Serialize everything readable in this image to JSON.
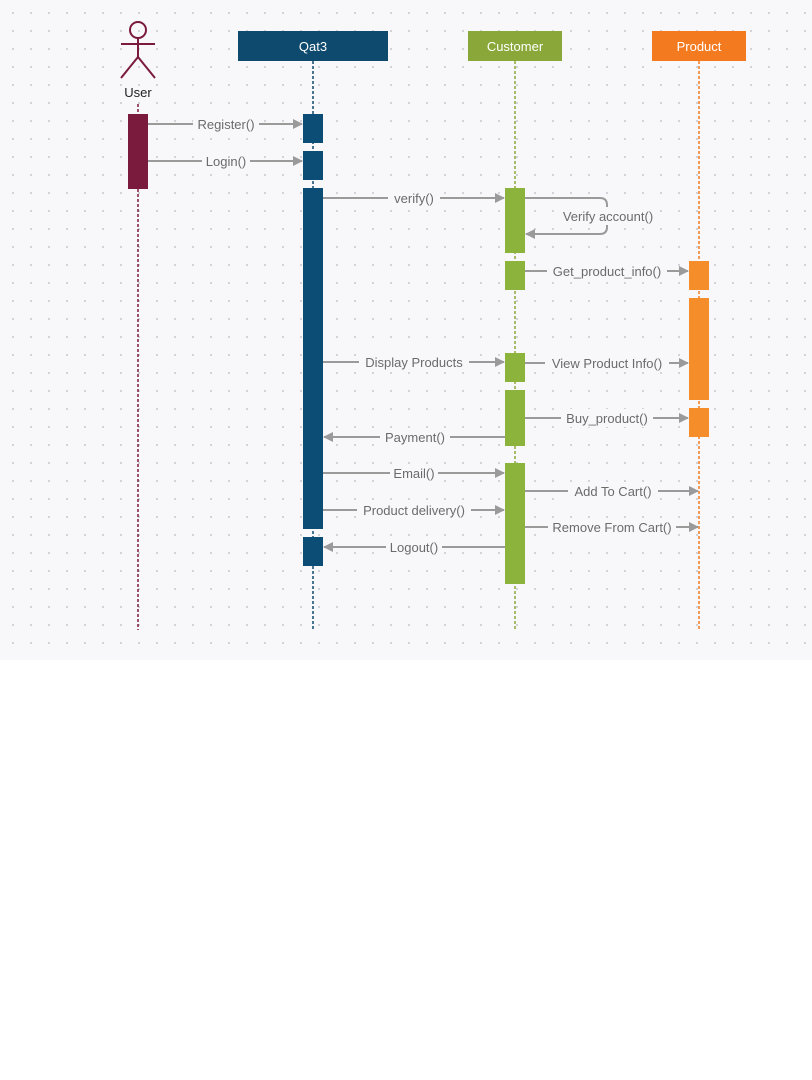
{
  "actor": {
    "name": "User",
    "color": "#7a1a3c"
  },
  "participants": [
    {
      "id": "qat3",
      "name": "Qat3",
      "color": "#0d4a6e",
      "bar_color": "#0b4d74"
    },
    {
      "id": "customer",
      "name": "Customer",
      "color": "#8aa83a",
      "bar_color": "#8cb33c"
    },
    {
      "id": "product",
      "name": "Product",
      "color": "#f47a20",
      "bar_color": "#f58d2a"
    }
  ],
  "messages": [
    {
      "label": "Register()",
      "from": "user",
      "to": "qat3"
    },
    {
      "label": "Login()",
      "from": "user",
      "to": "qat3"
    },
    {
      "label": "verify()",
      "from": "qat3",
      "to": "customer"
    },
    {
      "label": "Verify account()",
      "from": "customer",
      "to": "customer"
    },
    {
      "label": "Get_product_info()",
      "from": "customer",
      "to": "product"
    },
    {
      "label": "Display Products",
      "from": "qat3",
      "to": "customer"
    },
    {
      "label": "View Product Info()",
      "from": "customer",
      "to": "product"
    },
    {
      "label": "Buy_product()",
      "from": "customer",
      "to": "product"
    },
    {
      "label": "Payment()",
      "from": "customer",
      "to": "qat3"
    },
    {
      "label": "Email()",
      "from": "qat3",
      "to": "customer"
    },
    {
      "label": "Add To Cart()",
      "from": "customer",
      "to": "product"
    },
    {
      "label": "Product delivery()",
      "from": "qat3",
      "to": "customer"
    },
    {
      "label": "Remove From Cart()",
      "from": "customer",
      "to": "product"
    },
    {
      "label": "Logout()",
      "from": "customer",
      "to": "qat3"
    }
  ],
  "colors": {
    "arrow": "#9a9a9a",
    "label": "#6b6b6b"
  }
}
